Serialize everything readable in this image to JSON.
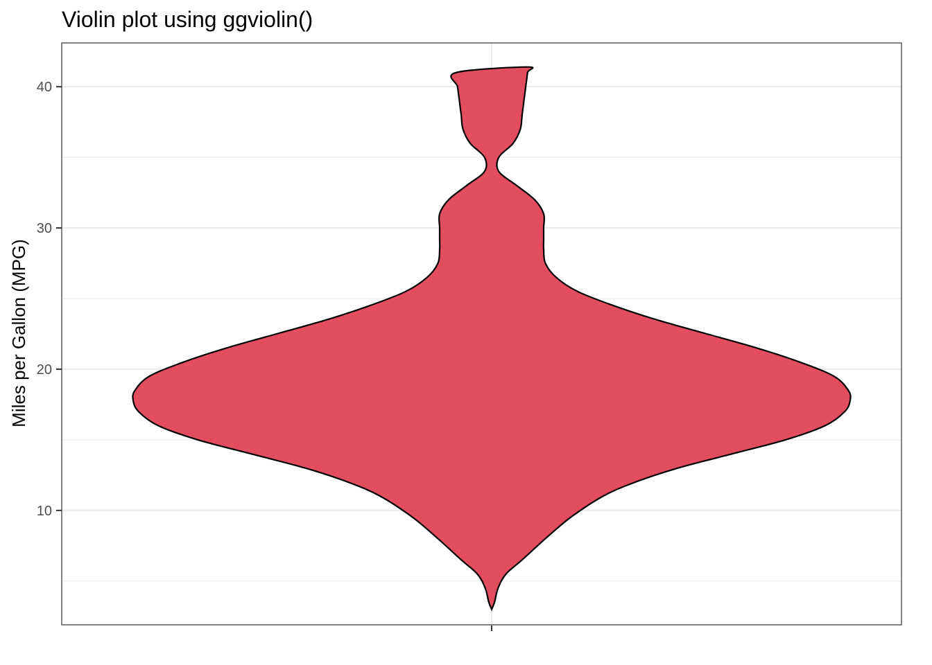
{
  "chart_data": {
    "type": "violin",
    "title": "Violin plot using ggviolin()",
    "xlabel": "",
    "ylabel": "Miles per Gallon (MPG)",
    "ylim": [
      1.9,
      43.1
    ],
    "y_ticks": [
      10,
      20,
      30,
      40
    ],
    "y_tick_labels": [
      "10",
      "20",
      "30",
      "40"
    ],
    "y_minor_ticks": [
      5,
      15,
      25,
      35
    ],
    "grid": true,
    "fill_color": "#e03a4f",
    "outline_color": "#000000",
    "density": [
      {
        "y": 3.0,
        "w": 0.0
      },
      {
        "y": 3.5,
        "w": 0.008
      },
      {
        "y": 4.5,
        "w": 0.018
      },
      {
        "y": 5.5,
        "w": 0.04
      },
      {
        "y": 6.5,
        "w": 0.085
      },
      {
        "y": 8.0,
        "w": 0.15
      },
      {
        "y": 9.5,
        "w": 0.22
      },
      {
        "y": 11.0,
        "w": 0.31
      },
      {
        "y": 12.0,
        "w": 0.4
      },
      {
        "y": 13.0,
        "w": 0.52
      },
      {
        "y": 14.0,
        "w": 0.67
      },
      {
        "y": 15.0,
        "w": 0.82
      },
      {
        "y": 16.0,
        "w": 0.93
      },
      {
        "y": 17.0,
        "w": 0.985
      },
      {
        "y": 17.8,
        "w": 1.0
      },
      {
        "y": 18.5,
        "w": 0.995
      },
      {
        "y": 19.5,
        "w": 0.955
      },
      {
        "y": 20.5,
        "w": 0.86
      },
      {
        "y": 21.5,
        "w": 0.74
      },
      {
        "y": 22.5,
        "w": 0.6
      },
      {
        "y": 23.5,
        "w": 0.46
      },
      {
        "y": 24.5,
        "w": 0.34
      },
      {
        "y": 25.5,
        "w": 0.24
      },
      {
        "y": 26.5,
        "w": 0.18
      },
      {
        "y": 27.5,
        "w": 0.15
      },
      {
        "y": 28.5,
        "w": 0.145
      },
      {
        "y": 29.2,
        "w": 0.145
      },
      {
        "y": 30.0,
        "w": 0.145
      },
      {
        "y": 31.0,
        "w": 0.145
      },
      {
        "y": 32.0,
        "w": 0.12
      },
      {
        "y": 33.0,
        "w": 0.07
      },
      {
        "y": 34.0,
        "w": 0.02
      },
      {
        "y": 35.0,
        "w": -0.02
      },
      {
        "y": 36.0,
        "w": -0.06
      },
      {
        "y": 37.0,
        "w": -0.08
      },
      {
        "y": 38.0,
        "w": -0.085
      },
      {
        "y": 39.0,
        "w": -0.09
      },
      {
        "y": 40.0,
        "w": -0.095
      },
      {
        "y": 41.0,
        "w": -0.1
      },
      {
        "y": 41.4,
        "w": -0.1
      }
    ]
  }
}
